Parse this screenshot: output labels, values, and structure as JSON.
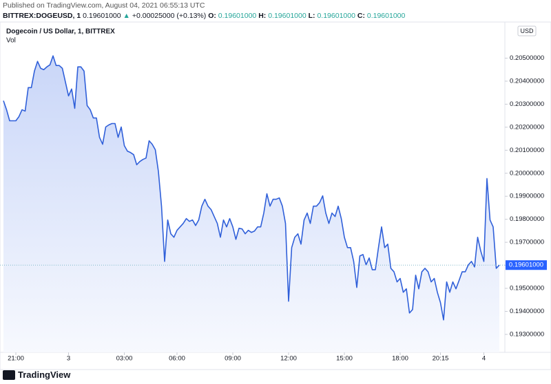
{
  "header": {
    "published": "Published on TradingView.com, August 04, 2021 06:55:13 UTC",
    "symbol": "BITTREX:DOGEUSD, 1",
    "last": "0.19601000",
    "arrow": "▲",
    "change": "+0.00025000 (+0.13%)",
    "ohlc": [
      {
        "label": "O:",
        "value": "0.19601000"
      },
      {
        "label": "H:",
        "value": "0.19601000"
      },
      {
        "label": "L:",
        "value": "0.19601000"
      },
      {
        "label": "C:",
        "value": "0.19601000"
      }
    ]
  },
  "chart_data": {
    "type": "line",
    "title": "Dogecoin / US Dollar, 1, BITTREX",
    "subtitle": "Vol",
    "currency": "USD",
    "categories": [
      null,
      null,
      null,
      null,
      "21:00",
      null,
      null,
      null,
      null,
      null,
      null,
      null,
      null,
      null,
      null,
      null,
      null,
      null,
      null,
      null,
      null,
      "3",
      null,
      null,
      null,
      null,
      null,
      null,
      null,
      null,
      null,
      null,
      null,
      null,
      null,
      null,
      null,
      null,
      null,
      "03:00",
      null,
      null,
      null,
      null,
      null,
      null,
      null,
      null,
      null,
      null,
      null,
      null,
      null,
      null,
      null,
      null,
      "06:00",
      null,
      null,
      null,
      null,
      null,
      null,
      null,
      null,
      null,
      null,
      null,
      null,
      null,
      null,
      null,
      null,
      null,
      "09:00",
      null,
      null,
      null,
      null,
      null,
      null,
      null,
      null,
      null,
      null,
      null,
      null,
      null,
      null,
      null,
      null,
      null,
      "12:00",
      null,
      null,
      null,
      null,
      null,
      null,
      null,
      null,
      null,
      null,
      null,
      null,
      null,
      null,
      null,
      null,
      null,
      "15:00",
      null,
      null,
      null,
      null,
      null,
      null,
      null,
      null,
      null,
      null,
      null,
      null,
      null,
      null,
      null,
      null,
      null,
      "18:00",
      null,
      null,
      null,
      null,
      null,
      null,
      null,
      null,
      null,
      null,
      null,
      null,
      "20:15",
      null,
      null,
      null,
      null,
      null,
      null,
      null,
      null,
      null,
      null,
      null,
      null,
      null,
      "4",
      null,
      null,
      null,
      null,
      null
    ],
    "series": [
      {
        "name": "DOGEUSD",
        "color": "#2f5fd9",
        "values": [
          0.20315,
          0.20276,
          0.20228,
          0.20228,
          0.20228,
          0.20246,
          0.20276,
          0.2027,
          0.20372,
          0.20372,
          0.20444,
          0.20486,
          0.20456,
          0.2045,
          0.20462,
          0.20471,
          0.2051,
          0.20468,
          0.20468,
          0.20456,
          0.20396,
          0.20336,
          0.20366,
          0.20282,
          0.20462,
          0.20462,
          0.20444,
          0.20294,
          0.20276,
          0.2024,
          0.2024,
          0.20156,
          0.20126,
          0.20201,
          0.2021,
          0.20216,
          0.20216,
          0.20156,
          0.20201,
          0.2012,
          0.20096,
          0.2009,
          0.20081,
          0.20037,
          0.20051,
          0.2006,
          0.20066,
          0.20141,
          0.20126,
          0.20102,
          0.20007,
          0.19857,
          0.19617,
          0.19797,
          0.19737,
          0.19722,
          0.19752,
          0.19767,
          0.19782,
          0.19803,
          0.19791,
          0.19797,
          0.19773,
          0.19797,
          0.19857,
          0.19887,
          0.19857,
          0.19842,
          0.19812,
          0.19782,
          0.19722,
          0.19797,
          0.19767,
          0.19803,
          0.19767,
          0.19713,
          0.19761,
          0.19758,
          0.19737,
          0.19752,
          0.19743,
          0.19749,
          0.19767,
          0.19767,
          0.19827,
          0.19911,
          0.19857,
          0.19887,
          0.19887,
          0.19893,
          0.19857,
          0.19782,
          0.19444,
          0.19677,
          0.19722,
          0.19737,
          0.19692,
          0.19797,
          0.19827,
          0.19782,
          0.19857,
          0.19857,
          0.19872,
          0.19902,
          0.19827,
          0.19782,
          0.19827,
          0.19812,
          0.19857,
          0.19803,
          0.19722,
          0.19677,
          0.19677,
          0.19617,
          0.19504,
          0.19641,
          0.19647,
          0.19602,
          0.19632,
          0.19581,
          0.19581,
          0.19677,
          0.19767,
          0.19677,
          0.19692,
          0.19587,
          0.19572,
          0.19528,
          0.19543,
          0.19483,
          0.19498,
          0.19393,
          0.19408,
          0.19557,
          0.19498,
          0.19572,
          0.19587,
          0.19572,
          0.19528,
          0.19543,
          0.19483,
          0.19438,
          0.19363,
          0.19528,
          0.19483,
          0.19528,
          0.19498,
          0.19534,
          0.19572,
          0.19572,
          0.19602,
          0.19617,
          0.19593,
          0.19722,
          0.19662,
          0.19617,
          0.19977,
          0.19797,
          0.19767,
          0.19587,
          0.19601
        ]
      }
    ],
    "ylim": [
      0.19222,
      0.20648
    ],
    "yticks": [
      {
        "value": 0.193,
        "label": "0.19300000"
      },
      {
        "value": 0.194,
        "label": "0.19400000"
      },
      {
        "value": 0.195,
        "label": "0.19500000"
      },
      {
        "value": 0.196,
        "label": "0.19600000"
      },
      {
        "value": 0.197,
        "label": "0.19700000"
      },
      {
        "value": 0.198,
        "label": "0.19800000"
      },
      {
        "value": 0.199,
        "label": "0.19900000"
      },
      {
        "value": 0.2,
        "label": "0.20000000"
      },
      {
        "value": 0.201,
        "label": "0.20100000"
      },
      {
        "value": 0.202,
        "label": "0.20200000"
      },
      {
        "value": 0.203,
        "label": "0.20300000"
      },
      {
        "value": 0.204,
        "label": "0.20400000"
      },
      {
        "value": 0.205,
        "label": "0.20500000"
      }
    ],
    "last_price": {
      "value": 0.19601,
      "label": "0.19601000"
    },
    "grid": false
  },
  "footer": {
    "brand": "TradingView"
  }
}
